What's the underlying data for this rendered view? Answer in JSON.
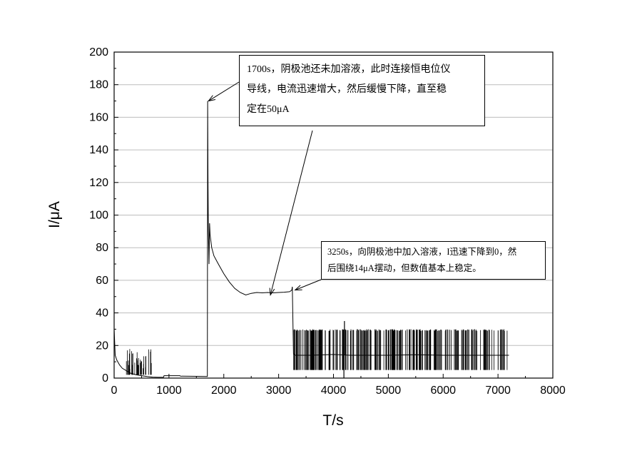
{
  "chart_data": {
    "type": "line",
    "xlabel": "T/s",
    "ylabel": "I/μA",
    "xlim": [
      0,
      8000
    ],
    "ylim": [
      0,
      200
    ],
    "x_ticks": [
      0,
      1000,
      2000,
      3000,
      4000,
      5000,
      6000,
      7000,
      8000
    ],
    "y_ticks": [
      0,
      20,
      40,
      60,
      80,
      100,
      120,
      140,
      160,
      180,
      200
    ],
    "grid": "horizontal",
    "series": [
      {
        "color": "#000000",
        "points": [
          [
            0,
            30
          ],
          [
            20,
            14
          ],
          [
            50,
            11
          ],
          [
            100,
            8
          ],
          [
            150,
            6
          ],
          [
            200,
            5
          ],
          [
            250,
            4
          ],
          [
            300,
            3
          ],
          [
            400,
            2
          ],
          [
            500,
            1.5
          ],
          [
            600,
            1
          ],
          [
            700,
            0.6
          ],
          [
            800,
            0.5
          ],
          [
            900,
            0.5
          ],
          [
            910,
            1.5
          ],
          [
            1200,
            1.5
          ],
          [
            1210,
            1.2
          ],
          [
            1500,
            1.1
          ],
          [
            1700,
            1
          ],
          [
            1705,
            170
          ],
          [
            1712,
            120
          ],
          [
            1718,
            90
          ],
          [
            1725,
            80
          ],
          [
            1730,
            70
          ],
          [
            1740,
            95
          ],
          [
            1750,
            88
          ],
          [
            1780,
            80
          ],
          [
            1820,
            75
          ],
          [
            1900,
            70
          ],
          [
            2000,
            64
          ],
          [
            2100,
            59
          ],
          [
            2200,
            55
          ],
          [
            2300,
            52.5
          ],
          [
            2400,
            51
          ],
          [
            2500,
            52
          ],
          [
            2600,
            52.5
          ],
          [
            2700,
            52.3
          ],
          [
            2800,
            52.5
          ],
          [
            2900,
            52.3
          ],
          [
            3000,
            52.5
          ],
          [
            3100,
            52.7
          ],
          [
            3200,
            53
          ],
          [
            3240,
            54
          ],
          [
            3250,
            56
          ],
          [
            3270,
            15
          ],
          [
            3300,
            14
          ],
          [
            3600,
            14
          ],
          [
            4000,
            14.5
          ],
          [
            4300,
            14
          ],
          [
            5000,
            14
          ],
          [
            5500,
            14.3
          ],
          [
            6000,
            14
          ],
          [
            6500,
            14
          ],
          [
            7000,
            14
          ],
          [
            7200,
            14
          ]
        ],
        "spikes": [
          {
            "x_range": [
              200,
              700
            ],
            "base": 2,
            "top_range": [
              5,
              18
            ],
            "count": 40
          },
          {
            "x_range": [
              3270,
              7200
            ],
            "base": 5,
            "top_range": [
              29,
              30
            ],
            "count": 280
          }
        ],
        "dips": [
          {
            "x": 4190,
            "value": 0
          },
          {
            "x": 4200,
            "value": 35
          }
        ]
      }
    ],
    "annotations": [
      {
        "text": "1700s，阴极池还未加溶液，此时连接恒电位仪导线，电流迅速增大，然后缓慢下降，直至稳定在50μA",
        "lines": [
          "1700s，阴极池还未加溶液，此时连接恒电位仪",
          "导线，电流迅速增大，然后缓慢下降，直至稳",
          "定在50μA"
        ],
        "arrows_to": [
          [
            1720,
            170
          ],
          [
            2850,
            51
          ]
        ]
      },
      {
        "text": "3250s，向阴极池中加入溶液，I迅速下降到0，然后围绕14μA摆动，但数值基本上稳定。",
        "lines": [
          "3250s，向阴极池中加入溶液，I迅速下降到0，然",
          "后围绕14μA摆动，但数值基本上稳定。"
        ],
        "arrows_to": [
          [
            3300,
            54
          ]
        ]
      }
    ]
  }
}
